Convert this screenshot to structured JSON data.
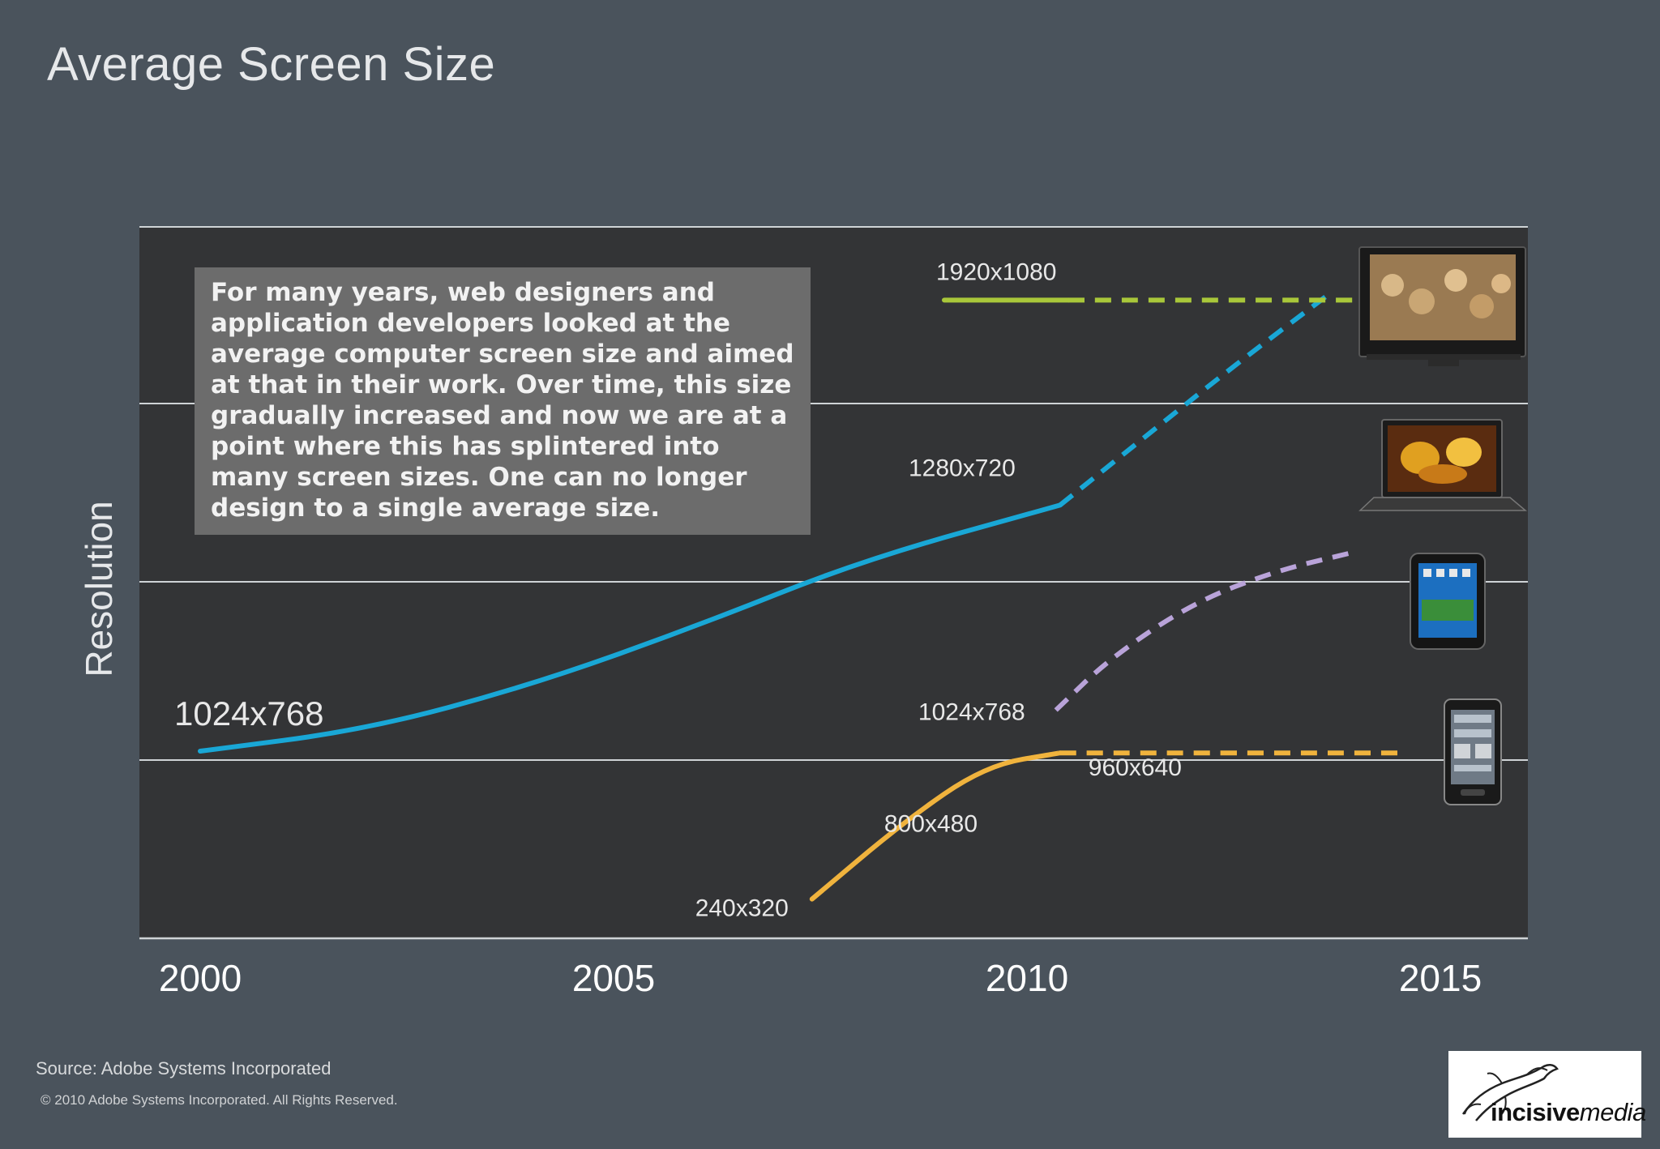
{
  "slide": {
    "title": "Average Screen Size",
    "callout_text": "For many years, web designers and application developers looked at the average computer screen size and aimed at that in their work. Over time, this size gradually increased and now we are at a point where this has splintered into many screen sizes. One can no longer design to a single average size.",
    "source": "Source: Adobe Systems Incorporated",
    "copyright": "© 2010 Adobe Systems Incorporated.  All Rights Reserved.",
    "logo": {
      "bold": "incisive",
      "italic": "media"
    }
  },
  "chart_data": {
    "type": "line",
    "title": "Average Screen Size",
    "xlabel": "",
    "ylabel": "Resolution",
    "xlim": [
      2000,
      2015
    ],
    "x_ticks": [
      "2000",
      "2005",
      "2010",
      "2015"
    ],
    "y_ticks": [],
    "grid": true,
    "colors": {
      "background": "#4a535c",
      "plot_background": "#333436",
      "grid": "#cfd3d6"
    },
    "series": [
      {
        "name": "Desktop",
        "color": "#19a7d6",
        "points_solid": [
          [
            2000,
            1.05
          ],
          [
            2002,
            1.17
          ],
          [
            2004,
            1.42
          ],
          [
            2006,
            1.75
          ],
          [
            2008,
            2.12
          ],
          [
            2010.4,
            2.43
          ]
        ],
        "points_dashed": [
          [
            2010.4,
            2.43
          ],
          [
            2011.5,
            2.84
          ],
          [
            2012.5,
            3.21
          ],
          [
            2013.7,
            3.63
          ]
        ],
        "labels": [
          {
            "text": "1024x768",
            "x": 2000,
            "y": 1.05,
            "size": "large"
          },
          {
            "text": "1280x720",
            "x": 2010.4,
            "y": 2.43,
            "size": "normal"
          }
        ],
        "device_icon": "laptop-icon"
      },
      {
        "name": "Tablet",
        "color": "#b9a3d9",
        "points_solid": [],
        "points_dashed": [
          [
            2010.35,
            1.28
          ],
          [
            2011,
            1.57
          ],
          [
            2012,
            1.88
          ],
          [
            2013,
            2.06
          ],
          [
            2013.9,
            2.16
          ]
        ],
        "labels": [
          {
            "text": "1024x768",
            "x": 2010.35,
            "y": 1.28,
            "size": "normal"
          }
        ],
        "device_icon": "tablet-icon"
      },
      {
        "name": "Mobile",
        "color": "#f0b33d",
        "points_solid": [
          [
            2007.4,
            0.22
          ],
          [
            2008.5,
            0.65
          ],
          [
            2009.5,
            0.97
          ],
          [
            2010.4,
            1.04
          ]
        ],
        "points_dashed": [
          [
            2010.4,
            1.04
          ],
          [
            2014.5,
            1.04
          ]
        ],
        "labels": [
          {
            "text": "240x320",
            "x": 2007.4,
            "y": 0.22,
            "size": "normal"
          },
          {
            "text": "800x480",
            "x": 2009.5,
            "y": 0.97,
            "size": "normal"
          },
          {
            "text": "960x640",
            "x": 2010.4,
            "y": 1.04,
            "size": "normal"
          }
        ],
        "device_icon": "smartphone-icon"
      },
      {
        "name": "TV",
        "color": "#a9c73a",
        "points_solid": [
          [
            2009,
            3.58
          ],
          [
            2010.5,
            3.58
          ]
        ],
        "points_dashed": [
          [
            2010.5,
            3.58
          ],
          [
            2014.5,
            3.58
          ]
        ],
        "labels": [
          {
            "text": "1920x1080",
            "x": 2009,
            "y": 3.58,
            "size": "normal"
          }
        ],
        "device_icon": "tv-icon"
      }
    ]
  }
}
